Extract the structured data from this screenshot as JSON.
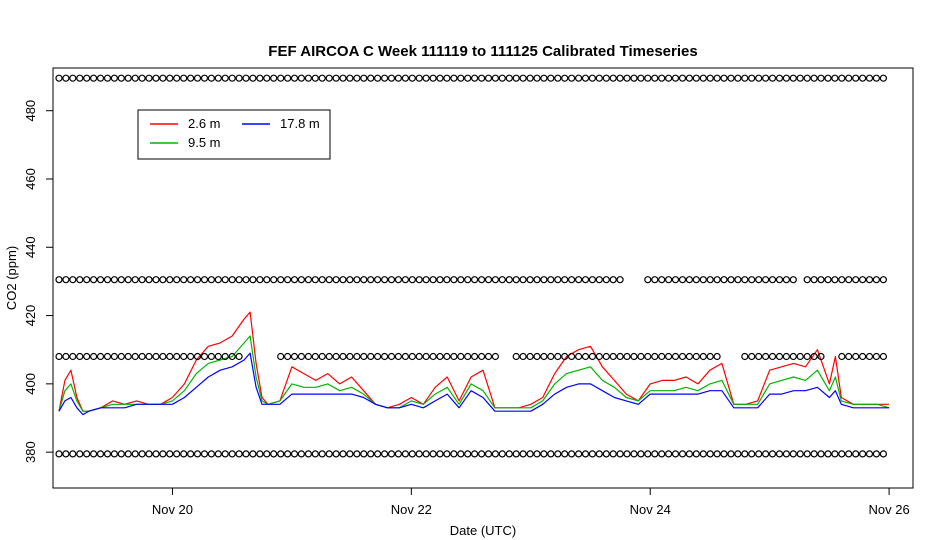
{
  "chart_data": {
    "type": "line",
    "title": "FEF AIRCOA C  Week 111119 to 111125  Calibrated Timeseries",
    "xlabel": "Date (UTC)",
    "ylabel": "CO2 (ppm)",
    "xlim": [
      19.0,
      26.2
    ],
    "ylim": [
      369.5,
      492.5
    ],
    "x_ticks": [
      {
        "value": 20,
        "label": "Nov 20"
      },
      {
        "value": 22,
        "label": "Nov 22"
      },
      {
        "value": 24,
        "label": "Nov 24"
      },
      {
        "value": 26,
        "label": "Nov 26"
      }
    ],
    "y_ticks": [
      {
        "value": 380,
        "label": "380"
      },
      {
        "value": 400,
        "label": "400"
      },
      {
        "value": 420,
        "label": "420"
      },
      {
        "value": 440,
        "label": "440"
      },
      {
        "value": 460,
        "label": "460"
      },
      {
        "value": 480,
        "label": "480"
      }
    ],
    "legend": {
      "position": "top-left",
      "entries": [
        {
          "label": "2.6 m",
          "color": "#ff0000"
        },
        {
          "label": "9.5 m",
          "color": "#00b400"
        },
        {
          "label": "17.8 m",
          "color": "#0000ff"
        }
      ]
    },
    "series": [
      {
        "name": "2.6 m",
        "color": "#ff0000",
        "x": [
          19.05,
          19.1,
          19.15,
          19.2,
          19.25,
          19.3,
          19.4,
          19.5,
          19.6,
          19.7,
          19.8,
          19.9,
          20.0,
          20.1,
          20.2,
          20.3,
          20.4,
          20.5,
          20.6,
          20.65,
          20.7,
          20.75,
          20.8,
          20.9,
          21.0,
          21.1,
          21.2,
          21.3,
          21.4,
          21.5,
          21.6,
          21.7,
          21.8,
          21.9,
          22.0,
          22.1,
          22.2,
          22.3,
          22.4,
          22.5,
          22.6,
          22.7,
          22.8,
          22.9,
          23.0,
          23.1,
          23.2,
          23.3,
          23.4,
          23.5,
          23.6,
          23.7,
          23.8,
          23.9,
          24.0,
          24.1,
          24.2,
          24.3,
          24.4,
          24.5,
          24.6,
          24.7,
          24.75,
          24.8,
          24.9,
          25.0,
          25.1,
          25.2,
          25.3,
          25.4,
          25.5,
          25.55,
          25.6,
          25.7,
          25.8,
          25.9,
          26.0
        ],
        "y": [
          392,
          401,
          404,
          396,
          392,
          392,
          393,
          395,
          394,
          395,
          394,
          394,
          396,
          400,
          407,
          411,
          412,
          414,
          419,
          421,
          406,
          396,
          394,
          395,
          405,
          403,
          401,
          403,
          400,
          402,
          398,
          394,
          393,
          394,
          396,
          394,
          399,
          402,
          395,
          402,
          404,
          393,
          393,
          393,
          394,
          396,
          403,
          408,
          410,
          411,
          405,
          401,
          397,
          395,
          400,
          401,
          401,
          402,
          400,
          404,
          406,
          394,
          394,
          394,
          395,
          404,
          405,
          406,
          405,
          410,
          400,
          408,
          396,
          394,
          394,
          394,
          394
        ]
      },
      {
        "name": "9.5 m",
        "color": "#00b400",
        "x": [
          19.05,
          19.1,
          19.15,
          19.2,
          19.25,
          19.3,
          19.4,
          19.5,
          19.6,
          19.7,
          19.8,
          19.9,
          20.0,
          20.1,
          20.2,
          20.3,
          20.4,
          20.5,
          20.6,
          20.65,
          20.7,
          20.75,
          20.8,
          20.9,
          21.0,
          21.1,
          21.2,
          21.3,
          21.4,
          21.5,
          21.6,
          21.7,
          21.8,
          21.9,
          22.0,
          22.1,
          22.2,
          22.3,
          22.4,
          22.5,
          22.6,
          22.7,
          22.8,
          22.9,
          23.0,
          23.1,
          23.2,
          23.3,
          23.4,
          23.5,
          23.6,
          23.7,
          23.8,
          23.9,
          24.0,
          24.1,
          24.2,
          24.3,
          24.4,
          24.5,
          24.6,
          24.7,
          24.75,
          24.8,
          24.9,
          25.0,
          25.1,
          25.2,
          25.3,
          25.4,
          25.5,
          25.55,
          25.6,
          25.7,
          25.8,
          25.9,
          26.0
        ],
        "y": [
          392,
          398,
          400,
          395,
          392,
          392,
          393,
          394,
          394,
          394,
          394,
          394,
          395,
          398,
          403,
          406,
          407,
          408,
          412,
          414,
          402,
          395,
          394,
          395,
          400,
          399,
          399,
          400,
          398,
          399,
          397,
          394,
          393,
          393,
          395,
          394,
          397,
          399,
          394,
          400,
          398,
          393,
          393,
          393,
          393,
          395,
          400,
          403,
          404,
          405,
          401,
          399,
          396,
          395,
          398,
          398,
          398,
          399,
          398,
          400,
          401,
          394,
          394,
          394,
          394,
          400,
          401,
          402,
          401,
          404,
          398,
          402,
          395,
          394,
          394,
          394,
          393
        ]
      },
      {
        "name": "17.8 m",
        "color": "#0000ff",
        "x": [
          19.05,
          19.1,
          19.15,
          19.2,
          19.25,
          19.3,
          19.4,
          19.5,
          19.6,
          19.7,
          19.8,
          19.9,
          20.0,
          20.1,
          20.2,
          20.3,
          20.4,
          20.5,
          20.6,
          20.65,
          20.7,
          20.75,
          20.8,
          20.9,
          21.0,
          21.1,
          21.2,
          21.3,
          21.4,
          21.5,
          21.6,
          21.7,
          21.8,
          21.9,
          22.0,
          22.1,
          22.2,
          22.3,
          22.4,
          22.5,
          22.6,
          22.7,
          22.8,
          22.9,
          23.0,
          23.1,
          23.2,
          23.3,
          23.4,
          23.5,
          23.6,
          23.7,
          23.8,
          23.9,
          24.0,
          24.1,
          24.2,
          24.3,
          24.4,
          24.5,
          24.6,
          24.7,
          24.75,
          24.8,
          24.9,
          25.0,
          25.1,
          25.2,
          25.3,
          25.4,
          25.5,
          25.55,
          25.6,
          25.7,
          25.8,
          25.9,
          26.0
        ],
        "y": [
          392,
          395,
          396,
          393,
          391,
          392,
          393,
          393,
          393,
          394,
          394,
          394,
          394,
          396,
          399,
          402,
          404,
          405,
          407,
          409,
          399,
          394,
          394,
          394,
          397,
          397,
          397,
          397,
          397,
          397,
          396,
          394,
          393,
          393,
          394,
          393,
          395,
          397,
          393,
          398,
          396,
          392,
          392,
          392,
          392,
          394,
          397,
          399,
          400,
          400,
          398,
          396,
          395,
          394,
          397,
          397,
          397,
          397,
          397,
          398,
          398,
          393,
          393,
          393,
          393,
          397,
          397,
          398,
          398,
          399,
          396,
          398,
          394,
          393,
          393,
          393,
          393
        ]
      }
    ],
    "reference_markers": [
      {
        "name": "cal-480",
        "y": 489.5,
        "x_start": 19.05,
        "x_end": 26.0,
        "step": 0.058,
        "gaps": []
      },
      {
        "name": "cal-430",
        "y": 430.5,
        "x_start": 19.05,
        "x_end": 26.0,
        "step": 0.058,
        "gaps": [
          [
            23.8,
            23.95
          ],
          [
            25.2,
            25.3
          ]
        ]
      },
      {
        "name": "cal-408",
        "y": 408.0,
        "x_start": 19.05,
        "x_end": 26.0,
        "step": 0.058,
        "gaps": [
          [
            20.6,
            20.85
          ],
          [
            22.75,
            22.85
          ],
          [
            24.6,
            24.75
          ],
          [
            25.45,
            25.55
          ]
        ]
      },
      {
        "name": "cal-379",
        "y": 379.5,
        "x_start": 19.05,
        "x_end": 26.0,
        "step": 0.058,
        "gaps": []
      }
    ]
  }
}
